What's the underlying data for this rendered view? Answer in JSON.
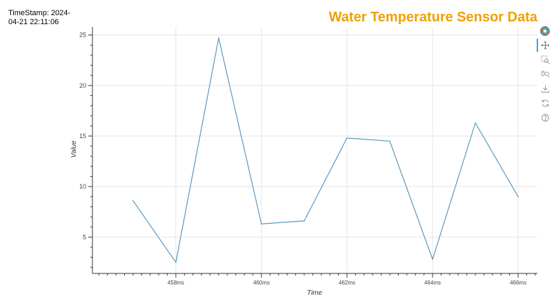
{
  "timestamp_text": "TimeStamp: 2024-04-21 22:11:06",
  "colors": {
    "title": "#f0a000",
    "line": "#5b96bd",
    "grid": "#e5e5e5",
    "axis": "#333333"
  },
  "toolbar": {
    "items": [
      {
        "name": "bokeh-logo-icon"
      },
      {
        "name": "pan-icon",
        "active": true
      },
      {
        "name": "box-zoom-icon"
      },
      {
        "name": "wheel-zoom-icon"
      },
      {
        "name": "save-icon"
      },
      {
        "name": "reset-icon"
      },
      {
        "name": "help-icon"
      }
    ]
  },
  "chart_data": {
    "type": "line",
    "title": "Water Temperature Sensor Data",
    "xlabel": "Time",
    "ylabel": "Value",
    "x_unit": "ms",
    "x_ticks": [
      458,
      460,
      462,
      464,
      466
    ],
    "x_tick_labels": [
      "458ms",
      "460ms",
      "462ms",
      "464ms",
      "466ms"
    ],
    "y_ticks": [
      5,
      10,
      15,
      20,
      25
    ],
    "xlim": [
      456.05,
      466.45
    ],
    "ylim": [
      1.4,
      25.8
    ],
    "grid": true,
    "x": [
      457,
      458,
      459,
      460,
      461,
      462,
      463,
      464,
      465,
      466
    ],
    "values": [
      8.6,
      2.5,
      24.7,
      6.3,
      6.6,
      14.8,
      14.5,
      2.8,
      16.3,
      9.0
    ]
  }
}
